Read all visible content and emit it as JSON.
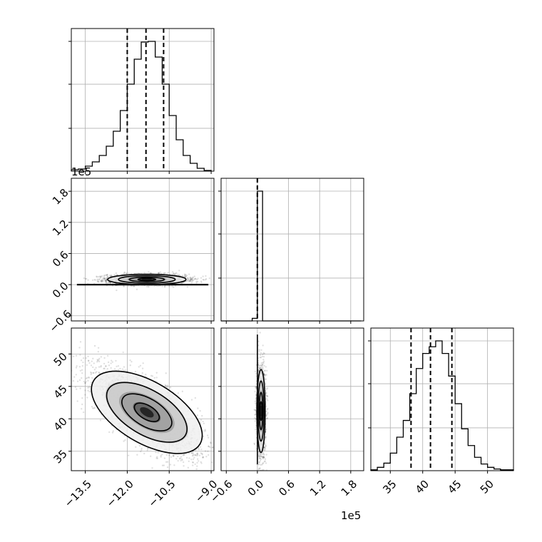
{
  "chart_data": {
    "type": "corner",
    "grid": true,
    "offset_text": "1e5",
    "offset_text_x": "1e5",
    "colors": {
      "line": "#000000",
      "grid": "#b0b0b0",
      "frame": "#000000",
      "fill": "#808080"
    },
    "params": [
      {
        "name": "",
        "range": [
          -14.0,
          -8.9
        ],
        "ticks": [
          "−13.5",
          "−12.0",
          "−10.5",
          "−9.0"
        ],
        "tick_values": [
          -13.5,
          -12.0,
          -10.5,
          -9.0
        ]
      },
      {
        "name": "",
        "range": [
          -0.7,
          2.05
        ],
        "ticks": [
          "−0.6",
          "0.0",
          "0.6",
          "1.2",
          "1.8"
        ],
        "tick_values": [
          -0.6,
          0.0,
          0.6,
          1.2,
          1.8
        ]
      },
      {
        "name": "",
        "range": [
          32.0,
          54.0
        ],
        "ticks": [
          "35",
          "40",
          "45",
          "50"
        ],
        "tick_values": [
          35,
          40,
          45,
          50
        ]
      }
    ],
    "hist_1d": [
      {
        "param": 0,
        "quantiles": [
          -12.0,
          -11.33,
          -10.7
        ],
        "bins": [
          -14.0,
          -13.75,
          -13.5,
          -13.25,
          -13.0,
          -12.75,
          -12.5,
          -12.25,
          -12.0,
          -11.75,
          -11.5,
          -11.25,
          -11.0,
          -10.75,
          -10.5,
          -10.25,
          -10.0,
          -9.75,
          -9.5,
          -9.25,
          -9.0
        ],
        "counts": [
          2,
          3,
          7,
          13,
          22,
          35,
          56,
          85,
          122,
          157,
          181,
          182,
          160,
          122,
          78,
          44,
          22,
          11,
          4,
          1
        ]
      },
      {
        "param": 1,
        "quantiles": [
          0.0,
          0.0,
          0.0
        ],
        "bins": [
          -0.7,
          -0.6,
          -0.5,
          -0.4,
          -0.3,
          -0.2,
          -0.1,
          0.0,
          0.1,
          0.2,
          0.3,
          0.4,
          0.5,
          0.6,
          0.7,
          0.8,
          0.9,
          1.0,
          1.1,
          1.2,
          1.3,
          1.4,
          1.5,
          1.6,
          1.7,
          1.8,
          1.9,
          2.0
        ],
        "counts": [
          0,
          0,
          0,
          0,
          0,
          0,
          0.02,
          1.0,
          0,
          0,
          0,
          0,
          0,
          0,
          0,
          0,
          0,
          0,
          0,
          0,
          0,
          0,
          0,
          0,
          0,
          0,
          0
        ]
      },
      {
        "param": 2,
        "quantiles": [
          38.2,
          41.2,
          44.5
        ],
        "bins": [
          32,
          33,
          34,
          35,
          36,
          37,
          38,
          39,
          40,
          41,
          42,
          43,
          44,
          45,
          46,
          47,
          48,
          49,
          50,
          51,
          52,
          53,
          54
        ],
        "counts": [
          1,
          4,
          9,
          21,
          40,
          60,
          92,
          122,
          140,
          148,
          155,
          140,
          113,
          80,
          50,
          30,
          16,
          8,
          4,
          2,
          1,
          1
        ]
      }
    ],
    "hist_2d": [
      {
        "x_param": 0,
        "y_param": 1,
        "center": [
          -11.3,
          0.1
        ],
        "spread": [
          0.7,
          0.05
        ],
        "corr": 0.0
      },
      {
        "x_param": 0,
        "y_param": 2,
        "center": [
          -11.3,
          41.0
        ],
        "spread": [
          0.95,
          3.4
        ],
        "corr": -0.72
      },
      {
        "x_param": 1,
        "y_param": 2,
        "center": [
          0.07,
          41.2
        ],
        "spread": [
          0.04,
          3.2
        ],
        "corr": 0.0
      }
    ],
    "layout": "lower-triangle 3x3"
  }
}
